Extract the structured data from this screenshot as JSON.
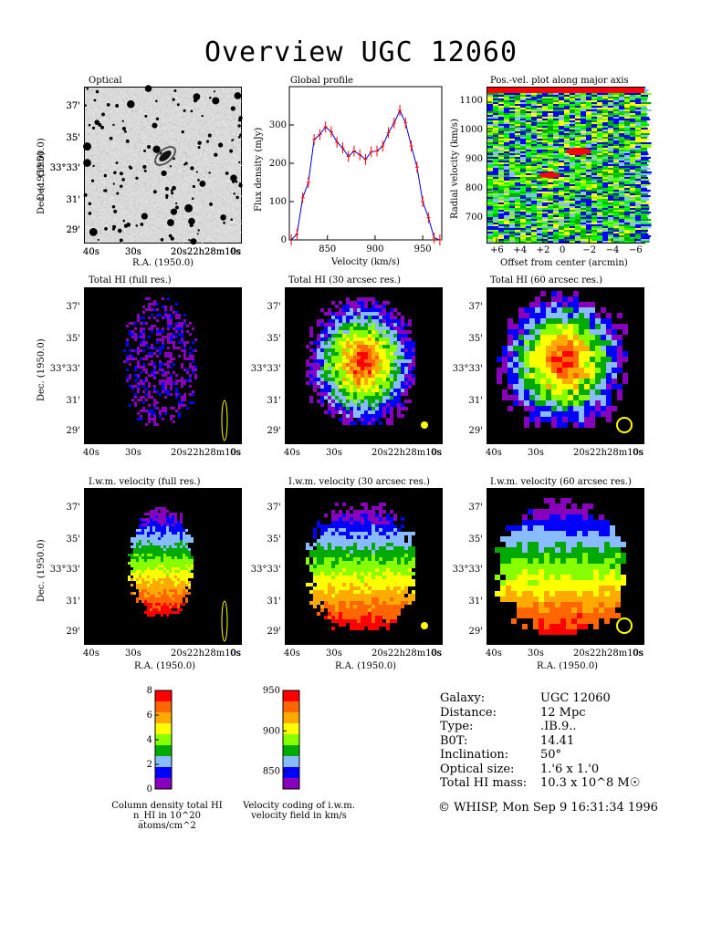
{
  "title": "Overview UGC 12060",
  "panels": {
    "optical": {
      "title": "Optical"
    },
    "global": {
      "title": "Global profile",
      "xlabel": "Velocity (km/s)",
      "ylabel": "Flux density (mJy)"
    },
    "pv": {
      "title": "Pos.-vel. plot along major axis",
      "xlabel": "Offset from center (arcmin)",
      "ylabel": "Radial velocity (km/s)"
    },
    "hi_full": {
      "title": "Total HI (full res.)"
    },
    "hi_30": {
      "title": "Total HI (30 arcsec res.)"
    },
    "hi_60": {
      "title": "Total HI (60 arcsec res.)"
    },
    "vel_full": {
      "title": "I.w.m. velocity (full res.)"
    },
    "vel_30": {
      "title": "I.w.m. velocity (30 arcsec res.)"
    },
    "vel_60": {
      "title": "I.w.m. velocity (60 arcsec res.)"
    }
  },
  "axes": {
    "dec_label": "Dec. (1950.0)",
    "ra_label": "R.A. (1950.0)",
    "dec_ticks": [
      "37'",
      "35'",
      "33°33'",
      "31'",
      "29'"
    ],
    "ra_ticks": [
      "40s",
      "30s",
      "20s22h28m10s",
      "0s"
    ]
  },
  "colorbars": {
    "density": {
      "ticks": [
        "8",
        "6",
        "4",
        "2",
        "0"
      ],
      "caption_line1": "Column density total HI",
      "caption_line2": "n_HI in 10^20 atoms/cm^2",
      "colors": [
        "#ff0000",
        "#ff6600",
        "#ffaa00",
        "#ffff00",
        "#88ff00",
        "#00aa00",
        "#88bbff",
        "#0000ff",
        "#8800bb"
      ]
    },
    "velocity": {
      "ticks": [
        "950",
        "900",
        "850"
      ],
      "caption_line1": "Velocity coding of i.w.m.",
      "caption_line2": "velocity field in km/s",
      "colors": [
        "#ff0000",
        "#ff6600",
        "#ffaa00",
        "#ffff00",
        "#88ff00",
        "#00aa00",
        "#88bbff",
        "#0000ff",
        "#8800bb"
      ]
    }
  },
  "galaxy_info": [
    {
      "label": "Galaxy:",
      "value": "UGC 12060"
    },
    {
      "label": "Distance:",
      "value": "12 Mpc"
    },
    {
      "label": "Type:",
      "value": ".IB.9.."
    },
    {
      "label": "B0T:",
      "value": "14.41"
    },
    {
      "label": "Inclination:",
      "value": "50°"
    },
    {
      "label": "Optical size:",
      "value": "1.'6 x 1.'0"
    },
    {
      "label": "Total HI mass:",
      "value": "10.3 x 10^8 M☉"
    }
  ],
  "footer": "© WHISP, Mon Sep  9 16:31:34 1996",
  "chart_data": [
    {
      "type": "line",
      "name": "global-profile",
      "title": "Global profile",
      "xlabel": "Velocity (km/s)",
      "ylabel": "Flux density (mJy)",
      "xlim": [
        810,
        970
      ],
      "ylim": [
        0,
        400
      ],
      "xticks": [
        850,
        900,
        950
      ],
      "yticks": [
        0,
        100,
        200,
        300
      ],
      "x": [
        812,
        818,
        824,
        830,
        836,
        842,
        848,
        854,
        860,
        866,
        872,
        878,
        884,
        890,
        896,
        902,
        908,
        914,
        920,
        926,
        932,
        938,
        944,
        950,
        956,
        962,
        968
      ],
      "y": [
        0,
        15,
        110,
        150,
        262,
        275,
        295,
        282,
        255,
        240,
        218,
        232,
        222,
        210,
        230,
        232,
        245,
        280,
        305,
        338,
        305,
        245,
        190,
        100,
        58,
        5,
        0
      ]
    },
    {
      "type": "heatmap",
      "name": "pv-diagram",
      "title": "Pos.-vel. plot along major axis",
      "xlabel": "Offset from center (arcmin)",
      "ylabel": "Radial velocity (km/s)",
      "xticks": [
        "+6",
        "+4",
        "+2",
        "0",
        "−2",
        "−4",
        "−6"
      ],
      "yticks": [
        700,
        800,
        900,
        1000,
        1100
      ],
      "xlim": [
        7,
        -7
      ],
      "ylim": [
        620,
        1150
      ]
    }
  ]
}
